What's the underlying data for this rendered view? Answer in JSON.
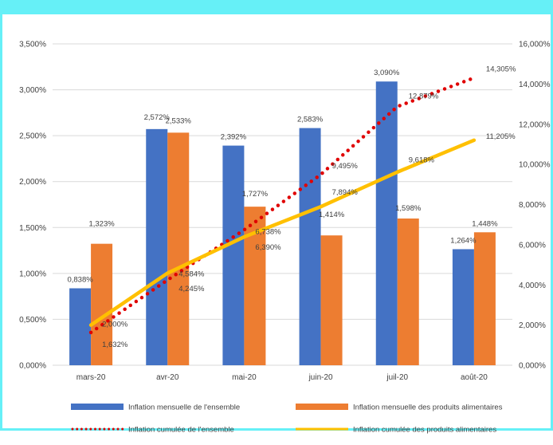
{
  "chart_data": {
    "type": "bar",
    "categories": [
      "mars-20",
      "avr-20",
      "mai-20",
      "juin-20",
      "juil-20",
      "août-20"
    ],
    "series": [
      {
        "name": "Inflation mensuelle de l'ensemble",
        "type": "bar",
        "axis": "left",
        "color": "#4472c4",
        "values": [
          0.838,
          2.572,
          2.392,
          2.583,
          3.09,
          1.264
        ],
        "labels": [
          "0,838%",
          "2,572%",
          "2,392%",
          "2,583%",
          "3,090%",
          "1,264%"
        ]
      },
      {
        "name": "Inflation mensuelle des produits alimentaires",
        "type": "bar",
        "axis": "left",
        "color": "#ed7d31",
        "values": [
          1.323,
          2.533,
          1.727,
          1.414,
          1.598,
          1.448
        ],
        "labels": [
          "1,323%",
          "2,533%",
          "1,727%",
          "1,414%",
          "1,598%",
          "1,448%"
        ]
      },
      {
        "name": "Inflation cumulée de l'ensemble",
        "type": "line",
        "style": "dotted",
        "axis": "right",
        "color": "#e00000",
        "values": [
          1.632,
          4.245,
          6.738,
          9.495,
          12.879,
          14.305
        ],
        "labels": [
          "1,632%",
          "4,245%",
          "6,738%",
          "9,495%",
          "12,879%",
          "14,305%"
        ]
      },
      {
        "name": "Inflation cumulée des produits alimentaires",
        "type": "line",
        "style": "solid",
        "axis": "right",
        "color": "#ffc000",
        "values": [
          2.0,
          4.584,
          6.39,
          7.894,
          9.618,
          11.205
        ],
        "labels": [
          "2,000%",
          "4,584%",
          "6,390%",
          "7,894%",
          "9,618%",
          "11,205%"
        ]
      }
    ],
    "left_axis": {
      "ylim": [
        0,
        3.5
      ],
      "step": 0.5,
      "tick_labels": [
        "0,000%",
        "0,500%",
        "1,000%",
        "1,500%",
        "2,000%",
        "2,500%",
        "3,000%",
        "3,500%"
      ]
    },
    "right_axis": {
      "ylim": [
        0,
        16
      ],
      "step": 2,
      "tick_labels": [
        "0,000%",
        "2,000%",
        "4,000%",
        "6,000%",
        "8,000%",
        "10,000%",
        "12,000%",
        "14,000%",
        "16,000%"
      ]
    },
    "grid": true,
    "legend_position": "bottom"
  }
}
